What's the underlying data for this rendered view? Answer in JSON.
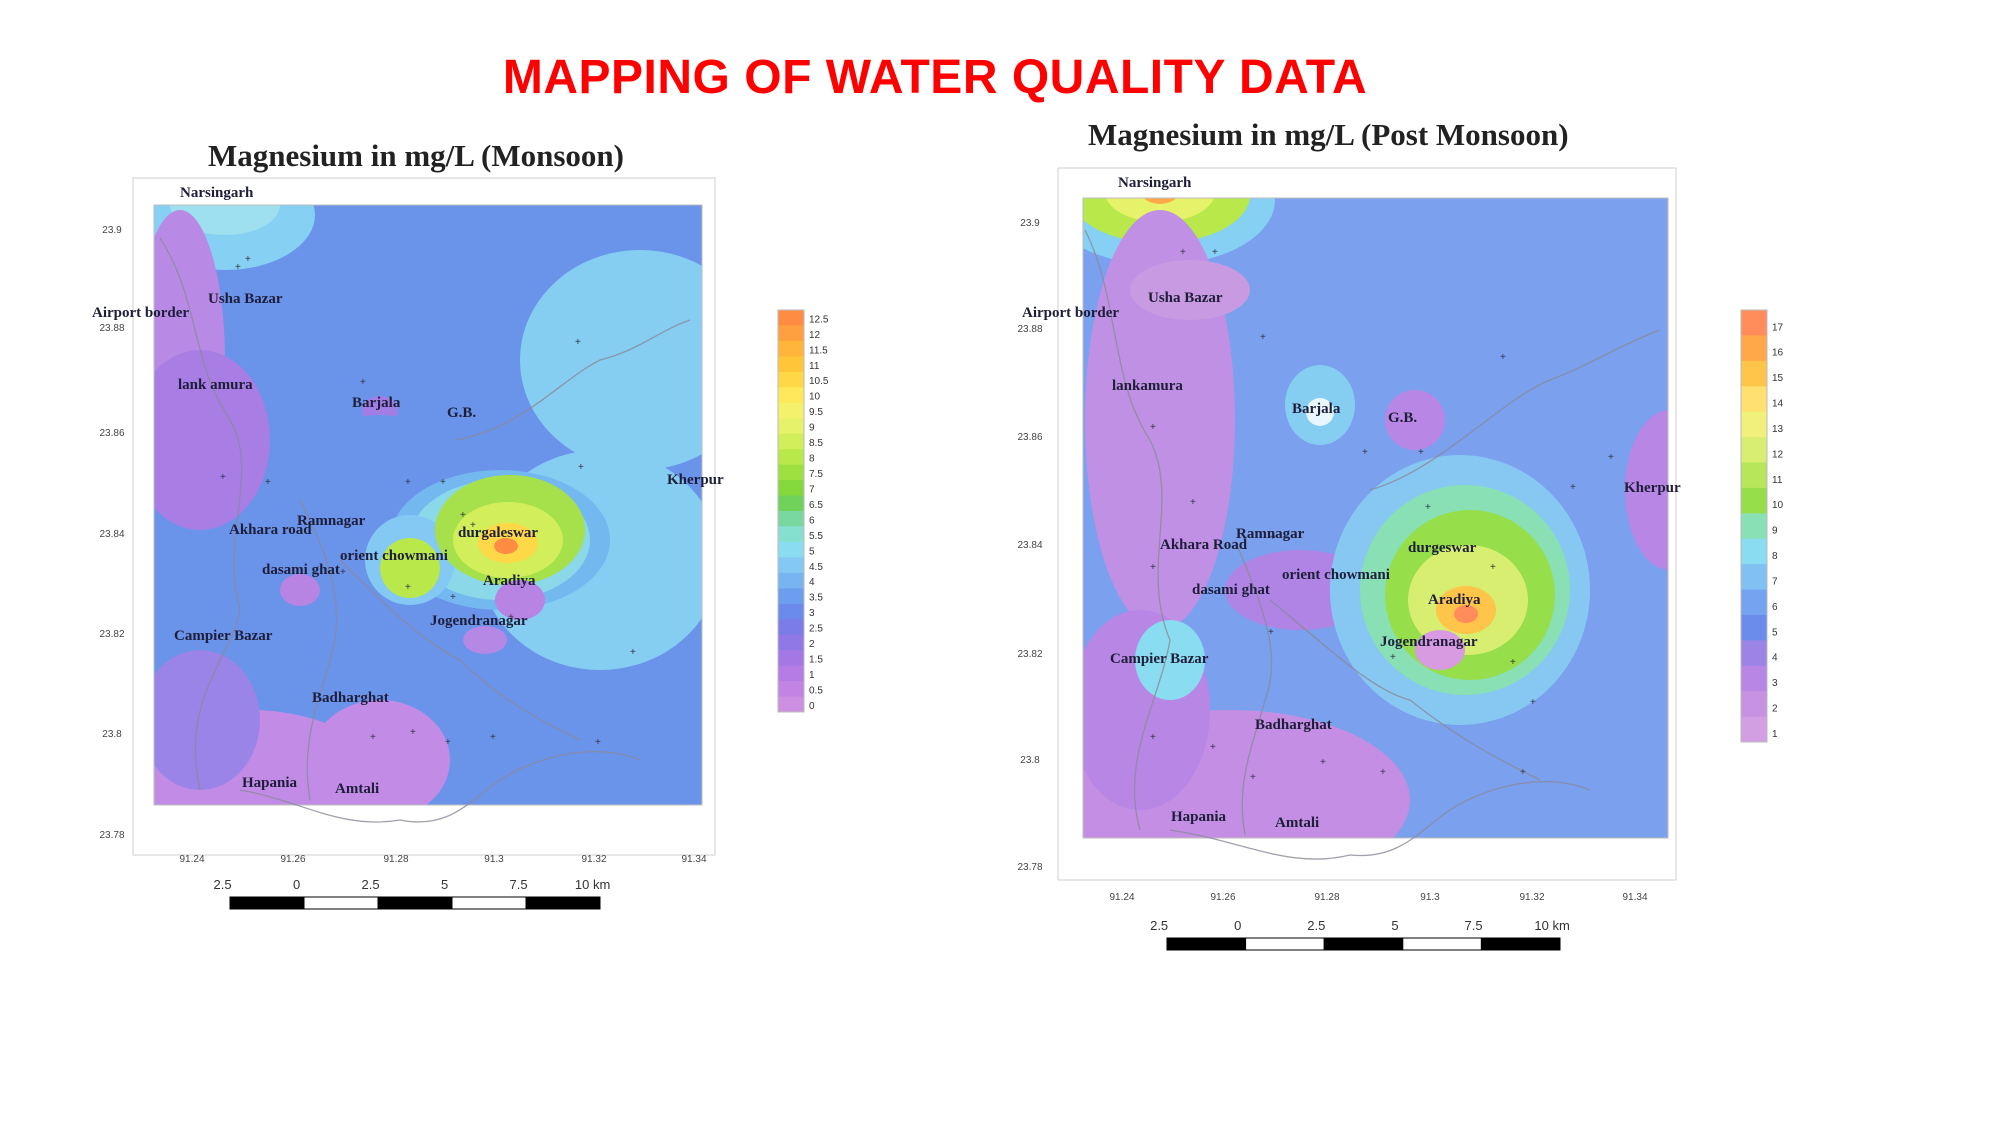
{
  "slide": {
    "title": "MAPPING OF WATER QUALITY DATA"
  },
  "colors": {
    "title": "#ff0000"
  },
  "maps": [
    {
      "id": "monsoon",
      "title": "Magnesium in mg/L (Monsoon)",
      "background": "#6a93ea",
      "lat_ticks": [
        "23.9",
        "23.88",
        "23.86",
        "23.84",
        "23.82",
        "23.8",
        "23.78"
      ],
      "lon_ticks": [
        "91.24",
        "91.26",
        "91.28",
        "91.3",
        "91.32",
        "91.34"
      ],
      "scale_bar": [
        "2.5",
        "0",
        "2.5",
        "5",
        "7.5",
        "10 km"
      ],
      "legend": {
        "labels": [
          "12.5",
          "12",
          "11.5",
          "11",
          "10.5",
          "10",
          "9.5",
          "9",
          "8.5",
          "8",
          "7.5",
          "7",
          "6.5",
          "6",
          "5.5",
          "5",
          "4.5",
          "4",
          "3.5",
          "3",
          "2.5",
          "2",
          "1.5",
          "1",
          "0.5",
          "0"
        ],
        "colors": [
          "#ff8c42",
          "#ffa040",
          "#ffb43a",
          "#ffc63a",
          "#ffd848",
          "#ffe85a",
          "#f4f26a",
          "#e6f26a",
          "#d2ee5a",
          "#b8e84a",
          "#9ee040",
          "#84d83c",
          "#70d25a",
          "#78d8a0",
          "#86e0d0",
          "#8adcf0",
          "#84c8f4",
          "#78b4f0",
          "#6c9ef0",
          "#6c8aec",
          "#7c7ce8",
          "#9078e6",
          "#a478e4",
          "#b47ce4",
          "#c284e4",
          "#cc8fe2"
        ]
      },
      "places": [
        "Narsingarh",
        "Usha Bazar",
        "Airport border",
        "lank amura",
        "Barjala",
        "G.B.",
        "Kherpur",
        "Ramnagar",
        "Akhara road",
        "durgaleswar",
        "dasami ghat",
        "orient chowmani",
        "Aradiya",
        "Jogendranagar",
        "Campier Bazar",
        "Badharghat",
        "Hapania",
        "Amtali"
      ]
    },
    {
      "id": "post-monsoon",
      "title": "Magnesium in mg/L (Post Monsoon)",
      "background": "#7aa0ee",
      "lat_ticks": [
        "23.9",
        "23.88",
        "23.86",
        "23.84",
        "23.82",
        "23.8",
        "23.78"
      ],
      "lon_ticks": [
        "91.24",
        "91.26",
        "91.28",
        "91.3",
        "91.32",
        "91.34"
      ],
      "scale_bar": [
        "2.5",
        "0",
        "2.5",
        "5",
        "7.5",
        "10 km"
      ],
      "legend": {
        "labels": [
          "17",
          "16",
          "15",
          "14",
          "13",
          "12",
          "11",
          "10",
          "9",
          "8",
          "7",
          "6",
          "5",
          "4",
          "3",
          "2",
          "1"
        ],
        "colors": [
          "#ff8c5a",
          "#ffa84a",
          "#ffc44a",
          "#ffe070",
          "#f0f07a",
          "#d8ee70",
          "#b8e65a",
          "#96de4a",
          "#88e0b4",
          "#8adcf0",
          "#80c0f2",
          "#74a4f0",
          "#6c8cec",
          "#9c84e6",
          "#b886e4",
          "#c892e2",
          "#d49ee2"
        ]
      },
      "places": [
        "Narsingarh",
        "Usha Bazar",
        "Airport border",
        "lankamura",
        "Barjala",
        "G.B.",
        "Kherpur",
        "Ramnagar",
        "Akhara Road",
        "durgeswar",
        "orient chowmani",
        "dasami ghat",
        "Aradiya",
        "Jogendranagar",
        "Campier Bazar",
        "Badharghat",
        "Hapania",
        "Amtali"
      ]
    }
  ]
}
